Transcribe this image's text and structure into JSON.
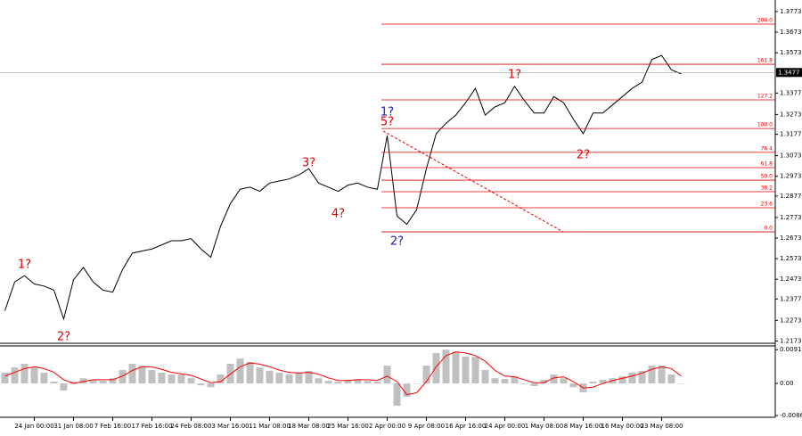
{
  "chart_data": [
    {
      "type": "line",
      "categories": [
        null,
        null,
        null,
        "24 Jan 00:00",
        null,
        null,
        null,
        "31 Jan 08:00",
        null,
        null,
        null,
        "7 Feb 16:00",
        null,
        null,
        null,
        "17 Feb 16:00",
        null,
        null,
        null,
        "24 Feb 08:00",
        null,
        null,
        null,
        "3 Mar 16:00",
        null,
        null,
        null,
        "11 Mar 08:00",
        null,
        null,
        null,
        "18 Mar 08:00",
        null,
        null,
        null,
        "25 Mar 16:00",
        null,
        null,
        null,
        "2 Apr 00:00",
        null,
        null,
        null,
        "9 Apr 08:00",
        null,
        null,
        null,
        "16 Apr 16:00",
        null,
        null,
        null,
        "24 Apr 00:00",
        null,
        null,
        null,
        "1 May 08:00",
        null,
        null,
        null,
        "8 May 16:00",
        null,
        null,
        null,
        "16 May 00:00",
        null,
        null,
        null,
        "23 May 08:00",
        null,
        null
      ],
      "values": [
        1.232,
        1.246,
        1.249,
        1.245,
        1.244,
        1.242,
        1.228,
        1.247,
        1.253,
        1.246,
        1.242,
        1.241,
        1.252,
        1.26,
        1.261,
        1.262,
        1.264,
        1.266,
        1.266,
        1.267,
        1.262,
        1.258,
        1.273,
        1.284,
        1.291,
        1.292,
        1.29,
        1.294,
        1.295,
        1.296,
        1.298,
        1.301,
        1.294,
        1.292,
        1.29,
        1.293,
        1.294,
        1.292,
        1.291,
        1.317,
        1.278,
        1.274,
        1.281,
        1.301,
        1.318,
        1.323,
        1.327,
        1.333,
        1.34,
        1.327,
        1.331,
        1.333,
        1.341,
        1.334,
        1.328,
        1.328,
        1.336,
        1.333,
        1.325,
        1.318,
        1.328,
        1.328,
        1.332,
        1.336,
        1.34,
        1.343,
        1.354,
        1.356,
        1.349,
        1.347
      ],
      "color": "#000000",
      "ylim": [
        1.2162,
        1.3829
      ],
      "yticks": [
        1.3773,
        1.3673,
        1.3573,
        1.3377,
        1.3273,
        1.3177,
        1.3073,
        1.2973,
        1.2877,
        1.2773,
        1.2673,
        1.2573,
        1.2473,
        1.2377,
        1.2273,
        1.2173
      ],
      "current_price": 1.3477,
      "fib_color": "#e00000",
      "fibonacci_levels": [
        {
          "label": "200.0",
          "price": 1.3712
        },
        {
          "label": "161.8",
          "price": 1.3517
        },
        {
          "label": "127.2",
          "price": 1.3344
        },
        {
          "label": "100.0",
          "price": 1.3205
        },
        {
          "label": "76.4",
          "price": 1.3089
        },
        {
          "label": "61.8",
          "price": 1.3015
        },
        {
          "label": "50.0",
          "price": 1.2954
        },
        {
          "label": "38.2",
          "price": 1.2898
        },
        {
          "label": "23.6",
          "price": 1.282
        },
        {
          "label": "0.0",
          "price": 1.2703
        }
      ],
      "wave_labels": [
        {
          "text": "1?",
          "color": "#e00000",
          "at": 2,
          "price": 1.2543
        },
        {
          "text": "2?",
          "color": "#e00000",
          "at": 6,
          "price": 1.2192
        },
        {
          "text": "3?",
          "color": "#e00000",
          "at": 31,
          "price": 1.3037
        },
        {
          "text": "4?",
          "color": "#e00000",
          "at": 34,
          "price": 1.279
        },
        {
          "text": "1?",
          "color": "#1a1acc",
          "at": 39,
          "price": 1.3283
        },
        {
          "text": "5?",
          "color": "#e00000",
          "at": 39,
          "price": 1.3236
        },
        {
          "text": "2?",
          "color": "#1a1acc",
          "at": 40,
          "price": 1.2656
        },
        {
          "text": "1?",
          "color": "#e00000",
          "at": 52,
          "price": 1.3465
        },
        {
          "text": "2?",
          "color": "#e00000",
          "at": 59,
          "price": 1.3076
        }
      ]
    },
    {
      "type": "bar",
      "values": [
        0.0029,
        0.0043,
        0.0053,
        0.0043,
        0.0029,
        0.0005,
        -0.0019,
        0.0005,
        0.0014,
        0.001,
        0.0007,
        0.0014,
        0.0036,
        0.0053,
        0.0048,
        0.0036,
        0.0029,
        0.0024,
        0.0024,
        0.0014,
        -0.0005,
        -0.001,
        0.0024,
        0.0053,
        0.0067,
        0.0058,
        0.0043,
        0.0034,
        0.0029,
        0.0024,
        0.0029,
        0.0034,
        0.0014,
        0.0007,
        0.0005,
        0.001,
        0.0012,
        0.0007,
        0.0005,
        0.0048,
        -0.006,
        -0.0036,
        0,
        0.0048,
        0.0082,
        0.0091,
        0.0086,
        0.0072,
        0.0072,
        0.0036,
        0.0014,
        0.0012,
        0.0019,
        0,
        -0.0007,
        0.001,
        0.0024,
        0.0014,
        -0.001,
        -0.0024,
        0.0005,
        0.001,
        0.0014,
        0.0019,
        0.0029,
        0.0034,
        0.0048,
        0.0048,
        0.0024,
        0
      ],
      "color": "#c0c0c0",
      "signal": {
        "color": "#ff0000",
        "values": [
          0.002,
          0.003,
          0.004,
          0.0045,
          0.004,
          0.003,
          0.001,
          0.0,
          0.0005,
          0.001,
          0.001,
          0.001,
          0.002,
          0.0035,
          0.0045,
          0.0045,
          0.0038,
          0.003,
          0.0026,
          0.0022,
          0.0012,
          0.0002,
          0.0005,
          0.0025,
          0.0045,
          0.0055,
          0.0052,
          0.0045,
          0.0036,
          0.003,
          0.0028,
          0.003,
          0.0025,
          0.0015,
          0.0008,
          0.0008,
          0.001,
          0.001,
          0.0008,
          0.002,
          0.0005,
          -0.003,
          -0.0025,
          0.0005,
          0.0045,
          0.0075,
          0.0085,
          0.0082,
          0.0075,
          0.006,
          0.0035,
          0.002,
          0.0018,
          0.001,
          0.0002,
          0.0002,
          0.0015,
          0.0018,
          0.0005,
          -0.0012,
          -0.001,
          0.0,
          0.0008,
          0.0014,
          0.002,
          0.0028,
          0.0038,
          0.0045,
          0.004,
          0.002
        ]
      },
      "ylim": [
        -0.0091,
        0.0101
      ],
      "yticks": [
        0.0091,
        {
          "value": 0,
          "label": "0.00"
        },
        -0.00862
      ]
    }
  ]
}
